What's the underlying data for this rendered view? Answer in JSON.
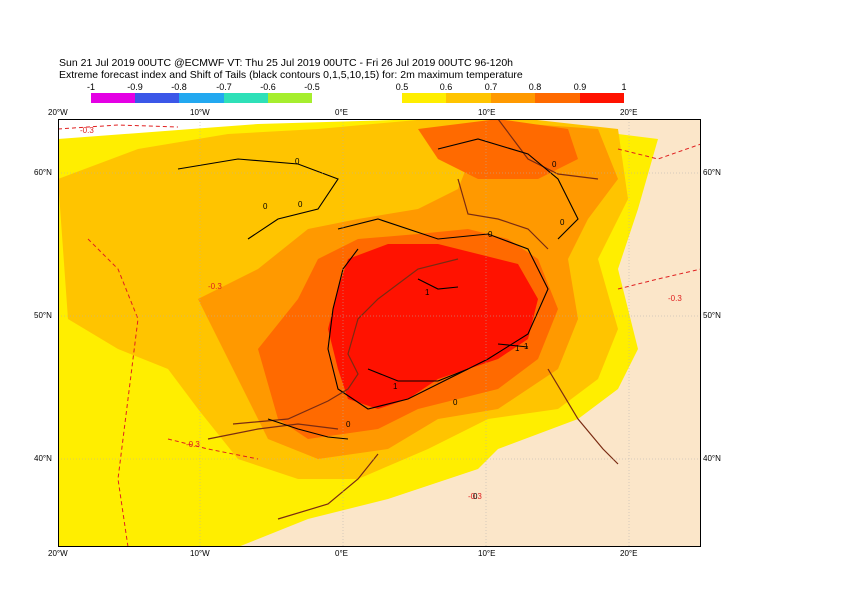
{
  "header": {
    "line1": "Sun 21 Jul 2019 00UTC @ECMWF VT: Thu 25 Jul 2019 00UTC - Fri 26 Jul 2019 00UTC  96-120h",
    "line2": "Extreme forecast index and Shift of Tails (black contours 0,1,5,10,15) for: 2m maximum temperature"
  },
  "legend_negative": {
    "labels": [
      "-1",
      "-0.9",
      "-0.8",
      "-0.7",
      "-0.6",
      "-0.5"
    ],
    "colors": [
      "#e400e4",
      "#3b57e8",
      "#22a8f0",
      "#2ee0b8",
      "#a6ee2e"
    ]
  },
  "legend_positive": {
    "labels": [
      "0.5",
      "0.6",
      "0.7",
      "0.8",
      "0.9",
      "1"
    ],
    "colors": [
      "#ffee00",
      "#ffc400",
      "#ff9900",
      "#ff6a00",
      "#ff1200"
    ]
  },
  "axes": {
    "lon_top": [
      "20°W",
      "10°W",
      "0°E",
      "10°E",
      "20°E"
    ],
    "lon_bottom": [
      "20°W",
      "10°W",
      "0°E",
      "10°E",
      "20°E"
    ],
    "lat_left": [
      "60°N",
      "50°N",
      "40°N"
    ],
    "lat_right": [
      "60°N",
      "50°N",
      "40°N"
    ]
  },
  "contour_labels": {
    "efi_neg": [
      "-0.3",
      "-0.3",
      "-0.3",
      "-0.3",
      "-0.3"
    ],
    "sot": [
      "0",
      "0",
      "0",
      "0",
      "0",
      "0",
      "1",
      "1",
      "1",
      "1",
      "0",
      "0",
      "0"
    ]
  }
}
